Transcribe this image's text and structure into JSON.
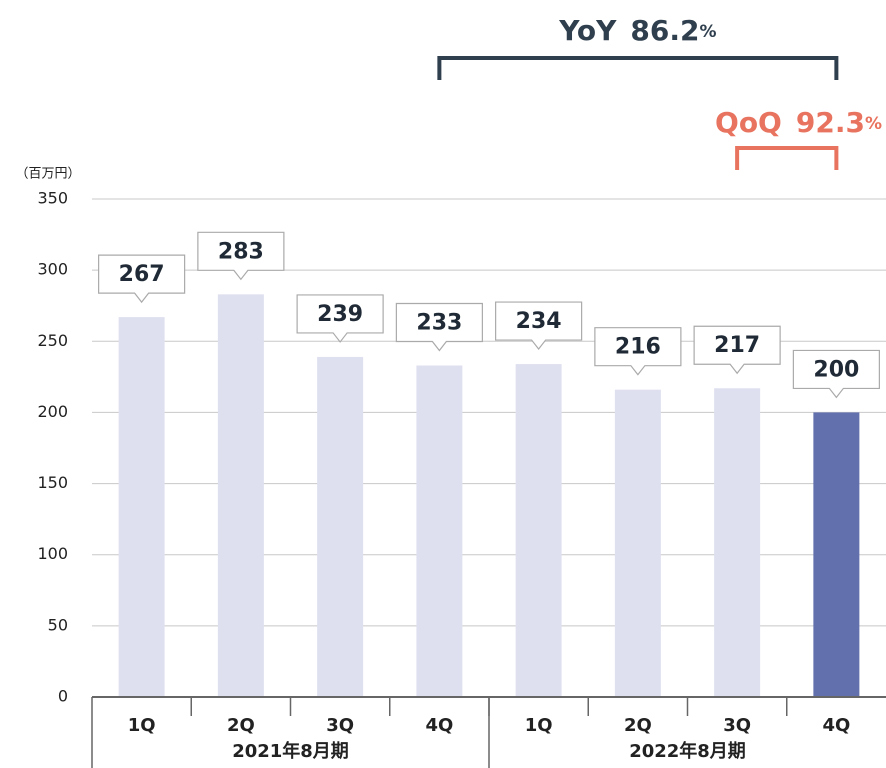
{
  "chart_data": {
    "type": "bar",
    "unit_label": "（百万円）",
    "categories": [
      "1Q",
      "2Q",
      "3Q",
      "4Q",
      "1Q",
      "2Q",
      "3Q",
      "4Q"
    ],
    "values": [
      267,
      283,
      239,
      233,
      234,
      216,
      217,
      200
    ],
    "colors": [
      "#dfe0ef",
      "#dfe0ef",
      "#dfe0ef",
      "#dfe0ef",
      "#dfe0ef",
      "#dfe0ef",
      "#dfe0ef",
      "#6270ae"
    ],
    "groups": [
      {
        "label": "2021年8月期",
        "span": [
          0,
          3
        ]
      },
      {
        "label": "2022年8月期",
        "span": [
          4,
          7
        ]
      }
    ],
    "annotations": [
      {
        "text": "YoY",
        "value": "86.2",
        "unit": "%",
        "color": "#2f3f4e",
        "span": [
          3,
          7
        ]
      },
      {
        "text": "QoQ",
        "value": "92.3",
        "unit": "%",
        "color": "#e8735f",
        "span": [
          6,
          7
        ]
      }
    ],
    "ylim": [
      0,
      350
    ],
    "yticks": [
      0,
      50,
      100,
      150,
      200,
      250,
      300,
      350
    ],
    "grid": true
  }
}
